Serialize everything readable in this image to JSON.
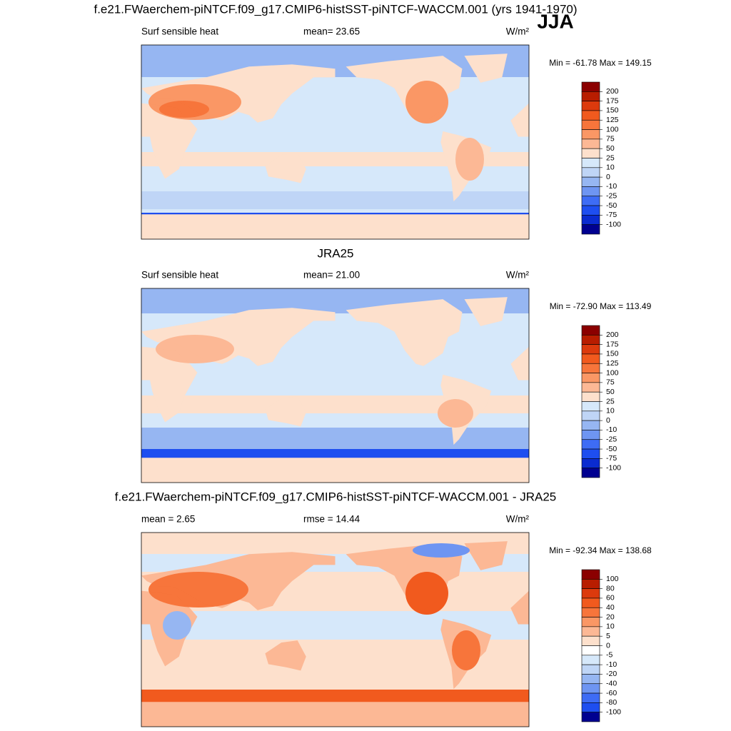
{
  "season": "JJA",
  "panels": [
    {
      "title": "f.e21.FWaerchem-piNTCF.f09_g17.CMIP6-histSST-piNTCF-WACCM.001 (yrs 1941-1970)",
      "left": "Surf sensible heat",
      "center": "mean=  23.65",
      "units": "W/m²",
      "minmax": "Min = -61.78 Max = 149.15",
      "colorbar": [
        200,
        175,
        150,
        125,
        100,
        75,
        50,
        25,
        10,
        0,
        -10,
        -25,
        -50,
        -75,
        -100
      ],
      "colors": [
        "#8b0000",
        "#b81d00",
        "#dc3a0d",
        "#f15a1e",
        "#f7753b",
        "#fa9765",
        "#fcb895",
        "#fde0cc",
        "#d6e8fa",
        "#bfd5f6",
        "#96b6f2",
        "#6e95f2",
        "#3e6cf5",
        "#1e4ef0",
        "#0a2bd0",
        "#000090"
      ]
    },
    {
      "title": "JRA25",
      "left": "Surf sensible heat",
      "center": "mean=  21.00",
      "units": "W/m²",
      "minmax": "Min = -72.90 Max = 113.49",
      "colorbar": [
        200,
        175,
        150,
        125,
        100,
        75,
        50,
        25,
        10,
        0,
        -10,
        -25,
        -50,
        -75,
        -100
      ],
      "colors": [
        "#8b0000",
        "#b81d00",
        "#dc3a0d",
        "#f15a1e",
        "#f7753b",
        "#fa9765",
        "#fcb895",
        "#fde0cc",
        "#d6e8fa",
        "#bfd5f6",
        "#96b6f2",
        "#6e95f2",
        "#3e6cf5",
        "#1e4ef0",
        "#0a2bd0",
        "#000090"
      ]
    },
    {
      "title": "f.e21.FWaerchem-piNTCF.f09_g17.CMIP6-histSST-piNTCF-WACCM.001 - JRA25",
      "left": "mean =   2.65",
      "center": "rmse =  14.44",
      "units": "W/m²",
      "minmax": "Min = -92.34 Max = 138.68",
      "colorbar": [
        100,
        80,
        60,
        40,
        20,
        10,
        5,
        0,
        -5,
        -10,
        -20,
        -40,
        -60,
        -80,
        -100
      ],
      "colors": [
        "#8b0000",
        "#b81d00",
        "#dc3a0d",
        "#f15a1e",
        "#f7753b",
        "#fa9765",
        "#fcb895",
        "#fde0cc",
        "#ffffff",
        "#d6e8fa",
        "#bfd5f6",
        "#96b6f2",
        "#6e95f2",
        "#3e6cf5",
        "#1e4ef0",
        "#000090"
      ]
    }
  ]
}
